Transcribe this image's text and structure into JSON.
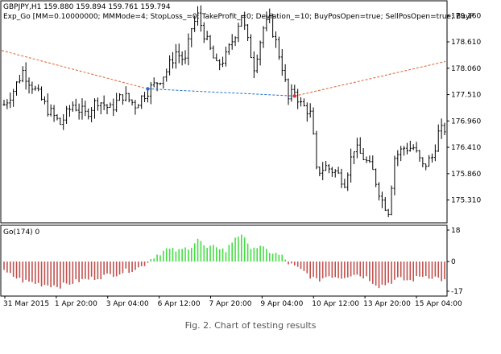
{
  "header": {
    "symbol_line": "GBPJPY,H1  159.880 159.894 159.761 159.794",
    "expert_line": "Exp_Go [MM=0.10000000; MMMode=4; StopLoss_=0; TakeProfit_=0; Deviation_=10; BuyPosOpen=true; SellPosOpen=true; BuyP"
  },
  "indicator": {
    "label": "Go(174) 0"
  },
  "caption": "Fig. 2. Chart of testing results",
  "colors": {
    "price": "#000000",
    "grid_border": "#000000",
    "trend_line": "#e06030",
    "trade_line": "#1e6fd0",
    "buy_marker": "#1e6fd0",
    "sell_marker": "#e03030",
    "hist_negative": "#c0504d",
    "hist_positive": "#44dd44"
  },
  "chart_data": [
    {
      "type": "ohlc",
      "y_ticks": [
        "179.160",
        "178.610",
        "178.060",
        "177.510",
        "176.960",
        "176.410",
        "175.860",
        "175.310"
      ],
      "ylim": [
        174.85,
        179.45
      ],
      "x_ticks": [
        "31 Mar 2015",
        "1 Apr 20:00",
        "3 Apr 04:00",
        "6 Apr 12:00",
        "7 Apr 20:00",
        "9 Apr 04:00",
        "10 Apr 12:00",
        "13 Apr 20:00",
        "15 Apr 04:00"
      ],
      "close_keypoints": [
        [
          0,
          177.3
        ],
        [
          3,
          177.6
        ],
        [
          6,
          178.0
        ],
        [
          10,
          177.6
        ],
        [
          14,
          177.2
        ],
        [
          18,
          176.9
        ],
        [
          22,
          177.3
        ],
        [
          26,
          177.1
        ],
        [
          30,
          177.4
        ],
        [
          34,
          177.2
        ],
        [
          38,
          177.5
        ],
        [
          42,
          177.3
        ],
        [
          46,
          177.6
        ],
        [
          48,
          177.7
        ],
        [
          52,
          178.0
        ],
        [
          55,
          178.4
        ],
        [
          58,
          178.2
        ],
        [
          60,
          178.9
        ],
        [
          62,
          179.15
        ],
        [
          65,
          178.6
        ],
        [
          68,
          178.1
        ],
        [
          71,
          178.3
        ],
        [
          74,
          178.8
        ],
        [
          76,
          179.2
        ],
        [
          78,
          178.6
        ],
        [
          80,
          178.1
        ],
        [
          83,
          178.9
        ],
        [
          85,
          179.05
        ],
        [
          87,
          178.6
        ],
        [
          89,
          178.1
        ],
        [
          91,
          177.4
        ],
        [
          93,
          177.6
        ],
        [
          95,
          177.3
        ],
        [
          97,
          177.2
        ],
        [
          98,
          177.1
        ],
        [
          99,
          176.6
        ],
        [
          100,
          175.9
        ],
        [
          103,
          176.0
        ],
        [
          106,
          175.9
        ],
        [
          109,
          175.7
        ],
        [
          112,
          176.4
        ],
        [
          115,
          176.2
        ],
        [
          118,
          175.9
        ],
        [
          121,
          175.3
        ],
        [
          123,
          175.1
        ],
        [
          125,
          176.2
        ],
        [
          128,
          176.4
        ],
        [
          131,
          176.4
        ],
        [
          134,
          176.0
        ],
        [
          137,
          176.2
        ],
        [
          139,
          176.7
        ],
        [
          141,
          176.8
        ]
      ],
      "trend_line_from": [
        "start",
        178.43
      ],
      "trend_line_mid": 177.63,
      "trend_line_to": [
        "end",
        178.2
      ],
      "trade_line_from": 177.63,
      "trade_line_to": 177.48
    },
    {
      "type": "histogram",
      "y_ticks": [
        "18",
        "0",
        "-17"
      ],
      "ylim": [
        -17,
        18
      ],
      "keypoints": [
        [
          0,
          -6
        ],
        [
          6,
          -11
        ],
        [
          12,
          -13
        ],
        [
          18,
          -14
        ],
        [
          24,
          -11
        ],
        [
          30,
          -9
        ],
        [
          36,
          -7
        ],
        [
          40,
          -5
        ],
        [
          44,
          -3
        ],
        [
          46,
          0
        ],
        [
          48,
          3
        ],
        [
          52,
          7
        ],
        [
          56,
          6
        ],
        [
          60,
          9
        ],
        [
          62,
          13
        ],
        [
          65,
          7
        ],
        [
          68,
          9
        ],
        [
          71,
          6
        ],
        [
          74,
          14
        ],
        [
          76,
          16
        ],
        [
          78,
          9
        ],
        [
          82,
          8
        ],
        [
          86,
          5
        ],
        [
          89,
          3
        ],
        [
          90,
          1
        ],
        [
          91,
          -1
        ],
        [
          94,
          -4
        ],
        [
          97,
          -7
        ],
        [
          100,
          -11
        ],
        [
          104,
          -8
        ],
        [
          108,
          -9
        ],
        [
          112,
          -7
        ],
        [
          116,
          -9
        ],
        [
          120,
          -14
        ],
        [
          122,
          -13
        ],
        [
          126,
          -10
        ],
        [
          130,
          -11
        ],
        [
          134,
          -8
        ],
        [
          138,
          -9
        ],
        [
          141,
          -11
        ]
      ]
    }
  ]
}
